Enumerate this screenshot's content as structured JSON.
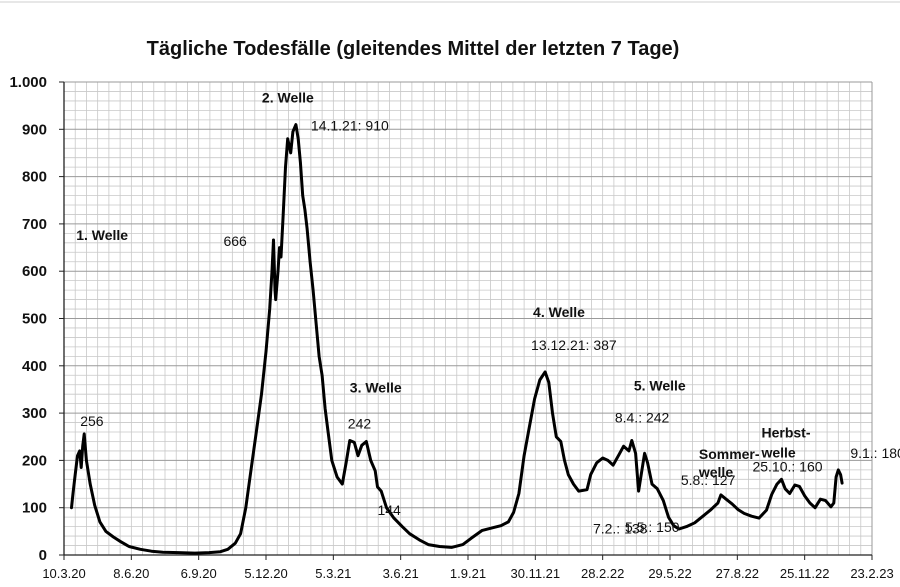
{
  "chart_data": {
    "type": "line",
    "title": "Tägliche Todesfälle (gleitendes Mittel der letzten 7 Tage)",
    "xlabel": "",
    "ylabel": "",
    "ylim": [
      0,
      1000
    ],
    "grid": true,
    "y_ticks": [
      {
        "value": 0,
        "label": "0"
      },
      {
        "value": 100,
        "label": "100"
      },
      {
        "value": 200,
        "label": "200"
      },
      {
        "value": 300,
        "label": "300"
      },
      {
        "value": 400,
        "label": "400"
      },
      {
        "value": 500,
        "label": "500"
      },
      {
        "value": 600,
        "label": "600"
      },
      {
        "value": 700,
        "label": "700"
      },
      {
        "value": 800,
        "label": "800"
      },
      {
        "value": 900,
        "label": "900"
      },
      {
        "value": 1000,
        "label": "1.000"
      }
    ],
    "x_ticks": [
      {
        "date": "2020-03-10",
        "label": "10.3.20"
      },
      {
        "date": "2020-06-08",
        "label": "8.6.20"
      },
      {
        "date": "2020-09-06",
        "label": "6.9.20"
      },
      {
        "date": "2020-12-05",
        "label": "5.12.20"
      },
      {
        "date": "2021-03-05",
        "label": "5.3.21"
      },
      {
        "date": "2021-06-03",
        "label": "3.6.21"
      },
      {
        "date": "2021-09-01",
        "label": "1.9.21"
      },
      {
        "date": "2021-11-30",
        "label": "30.11.21"
      },
      {
        "date": "2022-02-28",
        "label": "28.2.22"
      },
      {
        "date": "2022-05-29",
        "label": "29.5.22"
      },
      {
        "date": "2022-08-27",
        "label": "27.8.22"
      },
      {
        "date": "2022-11-25",
        "label": "25.11.22"
      },
      {
        "date": "2023-02-23",
        "label": "23.2.23"
      }
    ],
    "series": [
      {
        "points": [
          [
            "2020-03-20",
            100
          ],
          [
            "2020-03-22",
            130
          ],
          [
            "2020-03-25",
            170
          ],
          [
            "2020-03-28",
            210
          ],
          [
            "2020-03-31",
            220
          ],
          [
            "2020-04-02",
            185
          ],
          [
            "2020-04-04",
            230
          ],
          [
            "2020-04-06",
            256
          ],
          [
            "2020-04-09",
            200
          ],
          [
            "2020-04-14",
            150
          ],
          [
            "2020-04-20",
            105
          ],
          [
            "2020-04-27",
            70
          ],
          [
            "2020-05-05",
            50
          ],
          [
            "2020-05-15",
            38
          ],
          [
            "2020-05-25",
            28
          ],
          [
            "2020-06-05",
            18
          ],
          [
            "2020-06-20",
            12
          ],
          [
            "2020-07-05",
            8
          ],
          [
            "2020-07-20",
            6
          ],
          [
            "2020-08-10",
            5
          ],
          [
            "2020-09-01",
            4
          ],
          [
            "2020-09-20",
            5
          ],
          [
            "2020-10-05",
            7
          ],
          [
            "2020-10-15",
            12
          ],
          [
            "2020-10-25",
            25
          ],
          [
            "2020-11-01",
            45
          ],
          [
            "2020-11-08",
            100
          ],
          [
            "2020-11-15",
            180
          ],
          [
            "2020-11-22",
            260
          ],
          [
            "2020-11-29",
            340
          ],
          [
            "2020-12-05",
            430
          ],
          [
            "2020-12-10",
            520
          ],
          [
            "2020-12-13",
            600
          ],
          [
            "2020-12-15",
            666
          ],
          [
            "2020-12-17",
            560
          ],
          [
            "2020-12-18",
            540
          ],
          [
            "2020-12-21",
            600
          ],
          [
            "2020-12-23",
            650
          ],
          [
            "2020-12-25",
            630
          ],
          [
            "2020-12-28",
            720
          ],
          [
            "2020-12-31",
            820
          ],
          [
            "2021-01-03",
            880
          ],
          [
            "2021-01-07",
            850
          ],
          [
            "2021-01-10",
            895
          ],
          [
            "2021-01-14",
            910
          ],
          [
            "2021-01-17",
            880
          ],
          [
            "2021-01-20",
            830
          ],
          [
            "2021-01-23",
            760
          ],
          [
            "2021-01-26",
            730
          ],
          [
            "2021-01-29",
            690
          ],
          [
            "2021-02-02",
            620
          ],
          [
            "2021-02-06",
            560
          ],
          [
            "2021-02-10",
            490
          ],
          [
            "2021-02-14",
            420
          ],
          [
            "2021-02-18",
            380
          ],
          [
            "2021-02-22",
            310
          ],
          [
            "2021-02-26",
            260
          ],
          [
            "2021-03-03",
            200
          ],
          [
            "2021-03-10",
            165
          ],
          [
            "2021-03-17",
            150
          ],
          [
            "2021-03-22",
            195
          ],
          [
            "2021-03-27",
            242
          ],
          [
            "2021-04-02",
            238
          ],
          [
            "2021-04-07",
            210
          ],
          [
            "2021-04-12",
            232
          ],
          [
            "2021-04-18",
            240
          ],
          [
            "2021-04-24",
            200
          ],
          [
            "2021-04-30",
            178
          ],
          [
            "2021-05-03",
            144
          ],
          [
            "2021-05-08",
            135
          ],
          [
            "2021-05-15",
            100
          ],
          [
            "2021-05-25",
            78
          ],
          [
            "2021-06-05",
            60
          ],
          [
            "2021-06-15",
            45
          ],
          [
            "2021-06-28",
            32
          ],
          [
            "2021-07-10",
            22
          ],
          [
            "2021-07-25",
            18
          ],
          [
            "2021-08-10",
            16
          ],
          [
            "2021-08-25",
            22
          ],
          [
            "2021-09-05",
            35
          ],
          [
            "2021-09-20",
            52
          ],
          [
            "2021-10-05",
            58
          ],
          [
            "2021-10-15",
            62
          ],
          [
            "2021-10-25",
            70
          ],
          [
            "2021-11-01",
            90
          ],
          [
            "2021-11-08",
            130
          ],
          [
            "2021-11-15",
            210
          ],
          [
            "2021-11-22",
            270
          ],
          [
            "2021-11-29",
            330
          ],
          [
            "2021-12-06",
            370
          ],
          [
            "2021-12-13",
            387
          ],
          [
            "2021-12-18",
            365
          ],
          [
            "2021-12-23",
            300
          ],
          [
            "2021-12-28",
            250
          ],
          [
            "2022-01-03",
            240
          ],
          [
            "2022-01-08",
            200
          ],
          [
            "2022-01-13",
            170
          ],
          [
            "2022-01-20",
            150
          ],
          [
            "2022-01-27",
            135
          ],
          [
            "2022-02-07",
            138
          ],
          [
            "2022-02-12",
            170
          ],
          [
            "2022-02-20",
            195
          ],
          [
            "2022-02-28",
            205
          ],
          [
            "2022-03-07",
            200
          ],
          [
            "2022-03-14",
            190
          ],
          [
            "2022-03-21",
            210
          ],
          [
            "2022-03-28",
            230
          ],
          [
            "2022-04-04",
            220
          ],
          [
            "2022-04-08",
            242
          ],
          [
            "2022-04-13",
            215
          ],
          [
            "2022-04-17",
            135
          ],
          [
            "2022-04-21",
            175
          ],
          [
            "2022-04-25",
            215
          ],
          [
            "2022-04-29",
            195
          ],
          [
            "2022-05-05",
            150
          ],
          [
            "2022-05-12",
            140
          ],
          [
            "2022-05-20",
            115
          ],
          [
            "2022-05-27",
            80
          ],
          [
            "2022-06-03",
            62
          ],
          [
            "2022-06-10",
            55
          ],
          [
            "2022-06-20",
            60
          ],
          [
            "2022-07-01",
            68
          ],
          [
            "2022-07-12",
            82
          ],
          [
            "2022-07-22",
            95
          ],
          [
            "2022-08-01",
            110
          ],
          [
            "2022-08-05",
            127
          ],
          [
            "2022-08-12",
            118
          ],
          [
            "2022-08-20",
            108
          ],
          [
            "2022-08-28",
            96
          ],
          [
            "2022-09-05",
            88
          ],
          [
            "2022-09-15",
            82
          ],
          [
            "2022-09-25",
            78
          ],
          [
            "2022-10-05",
            95
          ],
          [
            "2022-10-12",
            128
          ],
          [
            "2022-10-19",
            150
          ],
          [
            "2022-10-25",
            160
          ],
          [
            "2022-10-30",
            140
          ],
          [
            "2022-11-05",
            130
          ],
          [
            "2022-11-12",
            148
          ],
          [
            "2022-11-18",
            145
          ],
          [
            "2022-11-25",
            125
          ],
          [
            "2022-12-02",
            110
          ],
          [
            "2022-12-09",
            100
          ],
          [
            "2022-12-16",
            118
          ],
          [
            "2022-12-23",
            115
          ],
          [
            "2022-12-30",
            102
          ],
          [
            "2023-01-03",
            110
          ],
          [
            "2023-01-06",
            165
          ],
          [
            "2023-01-09",
            180
          ],
          [
            "2023-01-12",
            170
          ],
          [
            "2023-01-14",
            152
          ]
        ]
      }
    ],
    "wave_labels": [
      {
        "text": "1. Welle",
        "date": "2020-04-06",
        "value": 256
      },
      {
        "text": "2. Welle",
        "date": "2021-01-14",
        "value": 910
      },
      {
        "text": "3. Welle",
        "date": "2021-03-27",
        "value": 242
      },
      {
        "text": "4. Welle",
        "date": "2021-12-13",
        "value": 387
      },
      {
        "text": "5. Welle",
        "date": "2022-04-08",
        "value": 242
      },
      {
        "text": "Sommer-",
        "date": "2022-08-05",
        "value": 127
      },
      {
        "text": "welle",
        "date": "2022-08-05",
        "value": 127
      },
      {
        "text": "Herbst-",
        "date": "2022-10-25",
        "value": 160
      },
      {
        "text": "welle",
        "date": "2022-10-25",
        "value": 160
      }
    ],
    "annotations": [
      {
        "text": "256",
        "date": "2020-04-06",
        "value": 256
      },
      {
        "text": "14.1.21: 910",
        "date": "2021-01-14",
        "value": 910
      },
      {
        "text": "666",
        "date": "2020-12-15",
        "value": 666
      },
      {
        "text": "242",
        "date": "2021-03-27",
        "value": 242
      },
      {
        "text": "144",
        "date": "2021-05-03",
        "value": 144
      },
      {
        "text": "13.12.21: 387",
        "date": "2021-12-13",
        "value": 387
      },
      {
        "text": "8.4.: 242",
        "date": "2022-04-08",
        "value": 242
      },
      {
        "text": "7.2.: 138",
        "date": "2022-02-07",
        "value": 138
      },
      {
        "text": "5.5.: 150",
        "date": "2022-05-05",
        "value": 150
      },
      {
        "text": "5.8.: 127",
        "date": "2022-08-05",
        "value": 127
      },
      {
        "text": "25.10.: 160",
        "date": "2022-10-25",
        "value": 160
      },
      {
        "text": "9.1.: 180",
        "date": "2023-01-09",
        "value": 180
      }
    ]
  }
}
